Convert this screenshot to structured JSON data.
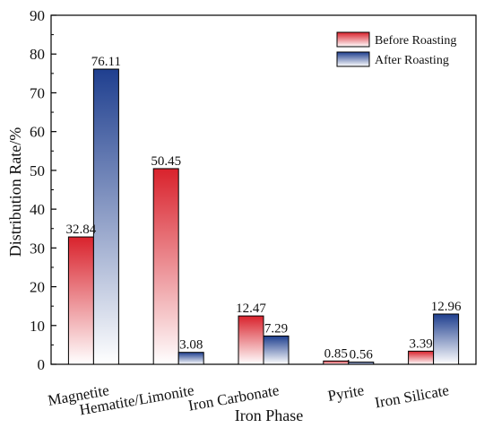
{
  "chart_data": {
    "type": "bar",
    "xlabel": "Iron Phase",
    "ylabel": "Distribution Rate/%",
    "ylim": [
      0,
      90
    ],
    "yticks": [
      0,
      10,
      20,
      30,
      40,
      50,
      60,
      70,
      80,
      90
    ],
    "categories": [
      "Magnetite",
      "Hematite/Limonite",
      "Iron Carbonate",
      "Pyrite",
      "Iron Silicate"
    ],
    "series": [
      {
        "name": "Before Roasting",
        "values": [
          32.84,
          50.45,
          12.47,
          0.85,
          3.39
        ],
        "labels": [
          "32.84",
          "50.45",
          "12.47",
          "0.85",
          "3.39"
        ],
        "color": "#d9222c"
      },
      {
        "name": "After Roasting",
        "values": [
          76.11,
          3.08,
          7.29,
          0.56,
          12.96
        ],
        "labels": [
          "76.11",
          "3.08",
          "7.29",
          "0.56",
          "12.96"
        ],
        "color": "#1f3f8f"
      }
    ],
    "legend_position": "top-right",
    "grid": false
  }
}
